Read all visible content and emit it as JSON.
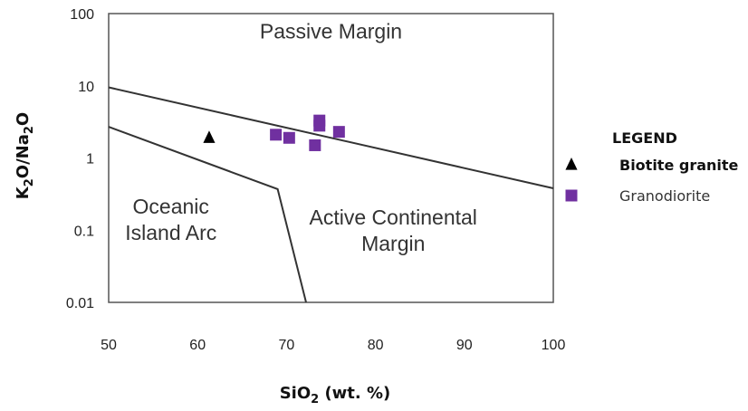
{
  "chart_data": {
    "type": "scatter",
    "title": "",
    "xlabel": {
      "base": "SiO",
      "sub": "2",
      "rest": " (wt. %)"
    },
    "ylabel": {
      "parts": [
        [
          "K",
          ""
        ],
        [
          "2",
          "sub"
        ],
        [
          "O/Na",
          ""
        ],
        [
          "2",
          "sub"
        ],
        [
          "O",
          ""
        ]
      ]
    },
    "x_scale": "linear",
    "y_scale": "log",
    "xlim": [
      50,
      100
    ],
    "ylim": [
      0.01,
      100
    ],
    "x_ticks": [
      "50",
      "60",
      "70",
      "80",
      "90",
      "100"
    ],
    "x_tick_values": [
      50,
      60,
      70,
      80,
      90,
      100
    ],
    "y_ticks": [
      "100",
      "10",
      "1",
      "0.1",
      "0.01"
    ],
    "y_tick_values": [
      100,
      10,
      1,
      0.1,
      0.01
    ],
    "grid": false,
    "legend_position": "right",
    "legend_title": "LEGEND",
    "boundaries": [
      {
        "name": "passive-active-boundary",
        "points": [
          [
            50,
            9.5
          ],
          [
            100,
            0.38
          ]
        ]
      },
      {
        "name": "arc-boundary",
        "points": [
          [
            50,
            2.7
          ],
          [
            69,
            0.37
          ],
          [
            72.2,
            0.01
          ]
        ]
      }
    ],
    "regions": [
      {
        "name": "passive-margin",
        "lines": [
          "Passive Margin"
        ],
        "x": 75,
        "y": 45
      },
      {
        "name": "oceanic-island-arc",
        "lines": [
          "Oceanic",
          "Island Arc"
        ],
        "x": 57,
        "y": 0.17
      },
      {
        "name": "active-continental-margin",
        "lines": [
          "Active Continental",
          "Margin"
        ],
        "x": 82,
        "y": 0.12
      }
    ],
    "series": [
      {
        "name": "Biotite granite",
        "marker": "triangle",
        "color": "#000000",
        "label_weight": "bold",
        "points": [
          [
            61.3,
            1.9
          ]
        ]
      },
      {
        "name": "Granodiorite",
        "marker": "square",
        "color": "#7030A0",
        "label_weight": "normal",
        "points": [
          [
            68.8,
            2.1
          ],
          [
            70.3,
            1.9
          ],
          [
            73.2,
            1.5
          ],
          [
            73.7,
            2.8
          ],
          [
            73.7,
            3.3
          ],
          [
            75.9,
            2.3
          ]
        ]
      }
    ]
  }
}
